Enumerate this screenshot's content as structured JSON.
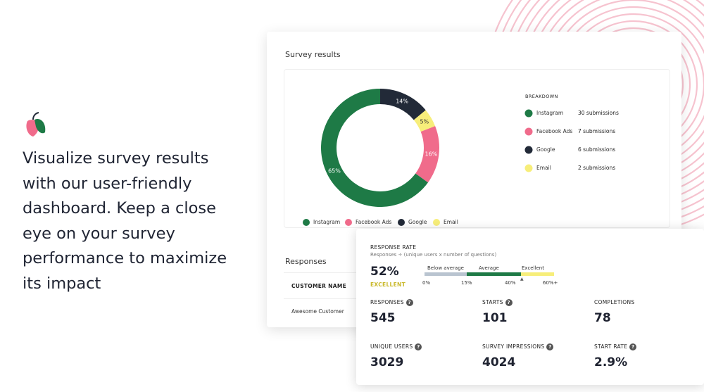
{
  "headline": [
    "Visualize survey results",
    "with our user-friendly",
    "dashboard. Keep a close",
    "eye on your survey",
    "performance to maximize",
    "its impact"
  ],
  "survey_results": {
    "title": "Survey results",
    "chart": {
      "type": "pie",
      "categories": [
        "Instagram",
        "Facebook Ads",
        "Google",
        "Email"
      ],
      "values": [
        65,
        16,
        14,
        5
      ],
      "value_labels": [
        "65%",
        "16%",
        "14%",
        "5%"
      ],
      "colors": [
        "#1e7a46",
        "#f06b8b",
        "#222a38",
        "#f7ee7a"
      ]
    },
    "breakdown": {
      "title": "BREAKDOWN",
      "submissions": [
        "30 submissions",
        "7 submissions",
        "6 submissions",
        "2 submissions"
      ]
    }
  },
  "responses": {
    "title": "Responses",
    "column": "CUSTOMER NAME",
    "rows": [
      "Awesome Customer"
    ]
  },
  "response_rate": {
    "title": "RESPONSE RATE",
    "formula": "Responses ÷ (unique users x number of questions)",
    "value": "52%",
    "rating": "EXCELLENT",
    "bands": [
      "Below average",
      "Average",
      "Excellent"
    ],
    "ticks": [
      "0%",
      "15%",
      "40%",
      "60%+"
    ]
  },
  "stats": [
    {
      "label": "RESPONSES",
      "value": "545"
    },
    {
      "label": "STARTS",
      "value": "101"
    },
    {
      "label": "COMPLETIONS",
      "value": "78"
    },
    {
      "label": "UNIQUE USERS",
      "value": "3029"
    },
    {
      "label": "SURVEY IMPRESSIONS",
      "value": "4024"
    },
    {
      "label": "START RATE",
      "value": "2.9%"
    }
  ]
}
